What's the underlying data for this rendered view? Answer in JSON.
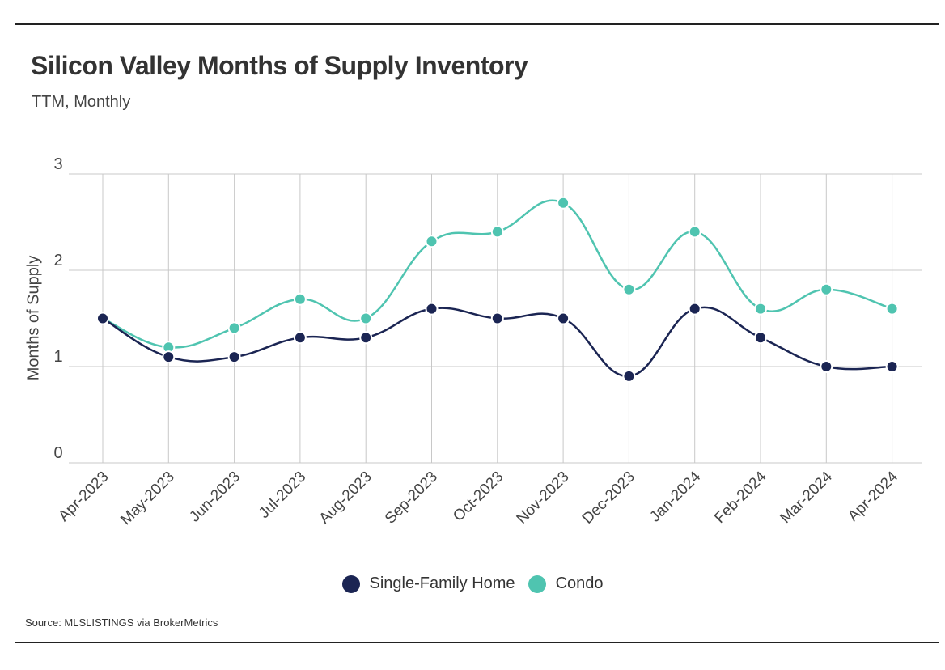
{
  "title": "Silicon Valley Months of Supply Inventory",
  "subtitle": "TTM, Monthly",
  "source": "Source:  MLSLISTINGS via BrokerMetrics",
  "colors": {
    "single_family": "#1b2553",
    "condo": "#4fc4b0",
    "grid": "#c8c8c8"
  },
  "chart_data": {
    "type": "line",
    "x": [
      "Apr-2023",
      "May-2023",
      "Jun-2023",
      "Jul-2023",
      "Aug-2023",
      "Sep-2023",
      "Oct-2023",
      "Nov-2023",
      "Dec-2023",
      "Jan-2024",
      "Feb-2024",
      "Mar-2024",
      "Apr-2024"
    ],
    "series": [
      {
        "name": "Single-Family Home",
        "values": [
          1.5,
          1.1,
          1.1,
          1.3,
          1.3,
          1.6,
          1.5,
          1.5,
          0.9,
          1.6,
          1.3,
          1.0,
          1.0
        ]
      },
      {
        "name": "Condo",
        "values": [
          1.5,
          1.2,
          1.4,
          1.7,
          1.5,
          2.3,
          2.4,
          2.7,
          1.8,
          2.4,
          1.6,
          1.8,
          1.6
        ]
      }
    ],
    "ylabel": "Months of Supply",
    "xlabel": "",
    "ylim": [
      0,
      3
    ],
    "yticks": [
      "0",
      "1",
      "2",
      "3"
    ],
    "grid": true,
    "legend": "bottom"
  }
}
